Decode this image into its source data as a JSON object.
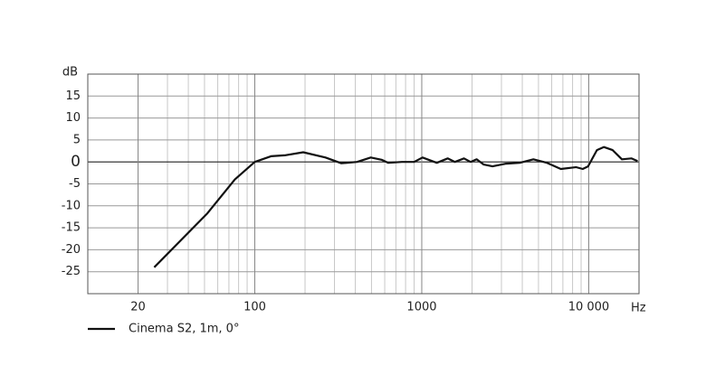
{
  "chart_data": {
    "type": "line",
    "y_label": "dB",
    "x_label": "Hz",
    "log_x": true,
    "grid": true,
    "xlim": [
      10,
      20000
    ],
    "xticks": [
      20,
      100,
      1000,
      {
        "value": 10000,
        "label": "10 000"
      }
    ],
    "ylim": [
      -30,
      20
    ],
    "yticks": [
      15,
      10,
      5,
      0,
      -5,
      -10,
      -15,
      -20,
      -25
    ],
    "x": [
      25,
      52,
      76,
      100,
      125,
      151,
      195,
      265,
      330,
      410,
      495,
      575,
      630,
      760,
      900,
      1010,
      1230,
      1430,
      1580,
      1790,
      1960,
      2130,
      2350,
      2650,
      3200,
      3860,
      4660,
      5630,
      6800,
      8400,
      9200,
      9900,
      11200,
      12300,
      13900,
      15800,
      18000,
      19600
    ],
    "series": [
      {
        "name": "Cinema S2, 1m, 0°",
        "color": "#111111",
        "values": [
          -24,
          -11.7,
          -4,
          0,
          1.3,
          1.5,
          2.2,
          1.0,
          -0.3,
          0,
          1.0,
          0.5,
          -0.2,
          0,
          0,
          1.0,
          -0.2,
          0.8,
          0,
          0.8,
          0,
          0.6,
          -0.6,
          -1.0,
          -0.4,
          -0.2,
          0.6,
          -0.2,
          -1.6,
          -1.2,
          -1.6,
          -1.0,
          2.7,
          3.4,
          2.7,
          0.6,
          0.8,
          0.2
        ]
      }
    ]
  }
}
